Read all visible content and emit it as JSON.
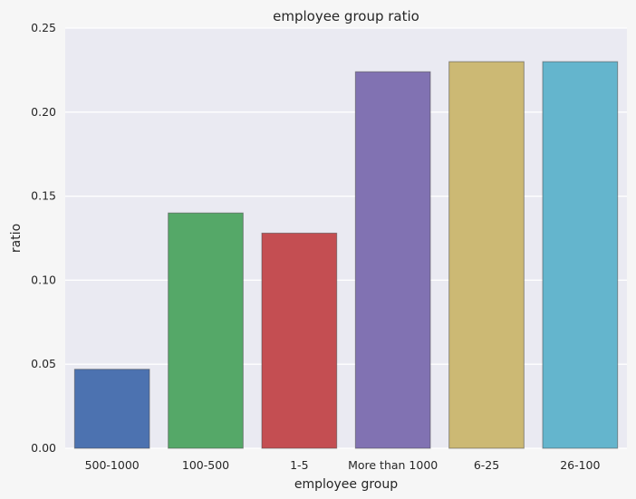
{
  "chart_data": {
    "type": "bar",
    "title": "employee group ratio",
    "xlabel": "employee group",
    "ylabel": "ratio",
    "categories": [
      "500-1000",
      "100-500",
      "1-5",
      "More than 1000",
      "6-25",
      "26-100"
    ],
    "values": [
      0.047,
      0.14,
      0.128,
      0.224,
      0.23,
      0.23
    ],
    "ylim": [
      0,
      0.25
    ],
    "yticks": [
      "0.00",
      "0.05",
      "0.10",
      "0.15",
      "0.20",
      "0.25"
    ],
    "grid": true,
    "colors": [
      "#4c72b0",
      "#55a868",
      "#c44e52",
      "#8172b2",
      "#ccb974",
      "#64b5cd"
    ],
    "plot_background": "#eaeaf2",
    "page_background": "#f6f6f6"
  }
}
